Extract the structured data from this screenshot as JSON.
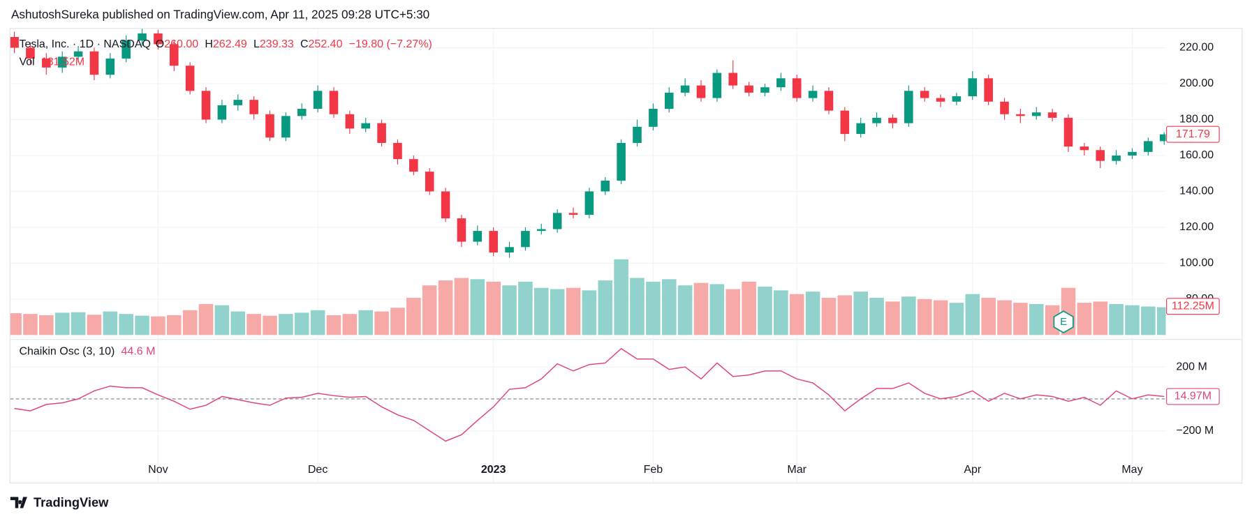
{
  "header": {
    "publisher": "AshutoshSureka published on TradingView.com, Apr 11, 2025 09:28 UTC+5:30"
  },
  "footer": {
    "brand": "TradingView"
  },
  "events": [
    {
      "label": "E"
    }
  ],
  "chart_data": [
    {
      "type": "candlestick",
      "title": "Tesla, Inc. · 1D · NASDAQ",
      "legend": [
        {
          "key": "O",
          "value": "260.00"
        },
        {
          "key": "H",
          "value": "262.49"
        },
        {
          "key": "L",
          "value": "239.33"
        },
        {
          "key": "C",
          "value": "252.40"
        }
      ],
      "change": "−19.80 (−7.27%)",
      "categories": [
        null,
        null,
        null,
        null,
        null,
        null,
        null,
        null,
        null,
        "Nov",
        null,
        null,
        null,
        null,
        null,
        null,
        null,
        null,
        null,
        "Dec",
        null,
        null,
        null,
        null,
        null,
        null,
        null,
        null,
        null,
        null,
        "2023",
        null,
        null,
        null,
        null,
        null,
        null,
        null,
        null,
        null,
        "Feb",
        null,
        null,
        null,
        null,
        null,
        null,
        null,
        null,
        "Mar",
        null,
        null,
        null,
        null,
        null,
        null,
        null,
        null,
        null,
        null,
        "Apr",
        null,
        null,
        null,
        null,
        null,
        null,
        null,
        null,
        null,
        "May",
        null,
        null
      ],
      "open": [
        226,
        220,
        214,
        209,
        215,
        218,
        205,
        214,
        224,
        228,
        222,
        210,
        196,
        180,
        188,
        191,
        183,
        170,
        182,
        186,
        196,
        183,
        175,
        178,
        167,
        158,
        151,
        140,
        125,
        112,
        118,
        106,
        109,
        118,
        119,
        128,
        127,
        140,
        146,
        167,
        176,
        186,
        195,
        199,
        192,
        206,
        199,
        195,
        198,
        203,
        192,
        196,
        185,
        172,
        178,
        181,
        178,
        196,
        192,
        190,
        193,
        203,
        190,
        183,
        182,
        184,
        181,
        165,
        163,
        157,
        160,
        162,
        168
      ],
      "high": [
        229,
        223,
        217,
        218,
        221,
        220,
        217,
        227,
        231,
        230,
        224,
        212,
        198,
        191,
        194,
        193,
        185,
        184,
        189,
        199,
        198,
        185,
        181,
        180,
        169,
        160,
        153,
        142,
        127,
        121,
        120,
        112,
        120,
        122,
        130,
        131,
        142,
        148,
        169,
        180,
        189,
        198,
        203,
        202,
        208,
        213,
        201,
        200,
        206,
        205,
        199,
        198,
        187,
        181,
        184,
        183,
        199,
        198,
        194,
        195,
        207,
        205,
        192,
        186,
        187,
        186,
        183,
        167,
        165,
        163,
        164,
        170,
        173
      ],
      "low": [
        217,
        211,
        205,
        206,
        212,
        202,
        203,
        212,
        221,
        219,
        207,
        194,
        178,
        178,
        185,
        180,
        168,
        168,
        180,
        184,
        181,
        172,
        173,
        165,
        155,
        149,
        138,
        123,
        109,
        110,
        104,
        103,
        107,
        116,
        117,
        125,
        125,
        138,
        144,
        165,
        174,
        184,
        193,
        190,
        190,
        197,
        193,
        193,
        196,
        190,
        190,
        183,
        168,
        170,
        176,
        175,
        176,
        190,
        187,
        188,
        191,
        188,
        180,
        178,
        180,
        179,
        162,
        160,
        153,
        155,
        158,
        160,
        166
      ],
      "close": [
        220,
        214,
        209,
        215,
        218,
        205,
        214,
        224,
        228,
        222,
        210,
        196,
        180,
        188,
        191,
        183,
        170,
        182,
        186,
        196,
        183,
        175,
        178,
        167,
        158,
        151,
        140,
        125,
        112,
        118,
        106,
        109,
        118,
        119,
        128,
        127,
        140,
        146,
        167,
        176,
        186,
        195,
        199,
        192,
        206,
        199,
        195,
        198,
        203,
        192,
        196,
        185,
        172,
        178,
        181,
        178,
        196,
        192,
        190,
        193,
        203,
        190,
        183,
        182,
        184,
        181,
        165,
        163,
        157,
        160,
        162,
        168,
        171.79
      ],
      "up_color": "#089981",
      "down_color": "#f23645",
      "ylim": [
        60,
        231
      ],
      "yticks": [
        {
          "value": 80,
          "label": "80.00"
        },
        {
          "value": 100,
          "label": "100.00"
        },
        {
          "value": 120,
          "label": "120.00"
        },
        {
          "value": 140,
          "label": "140.00"
        },
        {
          "value": 160,
          "label": "160.00"
        },
        {
          "value": 180,
          "label": "180.00"
        },
        {
          "value": 200,
          "label": "200.00"
        },
        {
          "value": 220,
          "label": "220.00"
        }
      ],
      "last_label": "171.79",
      "grid": true
    },
    {
      "type": "bar",
      "name": "Vol",
      "current_label": "181.52M",
      "values": [
        88,
        85,
        80,
        90,
        92,
        82,
        95,
        85,
        78,
        75,
        80,
        100,
        125,
        120,
        95,
        85,
        78,
        85,
        90,
        100,
        80,
        85,
        100,
        95,
        110,
        150,
        200,
        220,
        230,
        225,
        215,
        200,
        215,
        190,
        185,
        190,
        180,
        220,
        305,
        230,
        215,
        225,
        200,
        210,
        205,
        185,
        215,
        195,
        180,
        165,
        175,
        150,
        160,
        175,
        150,
        135,
        155,
        145,
        140,
        130,
        165,
        150,
        140,
        130,
        125,
        120,
        190,
        130,
        135,
        125,
        120,
        115,
        112.25
      ],
      "up_color": "#92d2cc",
      "down_color": "#f7a9a7",
      "last_label": "112.25M"
    },
    {
      "type": "line",
      "name": "Chaikin Osc (3, 10)",
      "current_label": "44.6 M",
      "values": [
        -60,
        -75,
        -35,
        -25,
        0,
        50,
        80,
        70,
        70,
        25,
        -15,
        -65,
        -40,
        15,
        -5,
        -25,
        -40,
        5,
        10,
        35,
        20,
        10,
        15,
        -50,
        -100,
        -135,
        -200,
        -265,
        -225,
        -135,
        -50,
        60,
        70,
        125,
        220,
        175,
        215,
        225,
        315,
        250,
        250,
        185,
        200,
        125,
        225,
        140,
        150,
        175,
        175,
        125,
        100,
        25,
        -75,
        0,
        65,
        65,
        100,
        35,
        0,
        15,
        50,
        -15,
        35,
        0,
        25,
        15,
        -15,
        10,
        -40,
        50,
        0,
        25,
        14.97
      ],
      "color": "#e0457b",
      "ylim": [
        -525,
        350
      ],
      "yticks": [
        {
          "value": 200,
          "label": "200 M"
        },
        {
          "value": -200,
          "label": "−200 M"
        }
      ],
      "last_label": "14.97M"
    }
  ]
}
